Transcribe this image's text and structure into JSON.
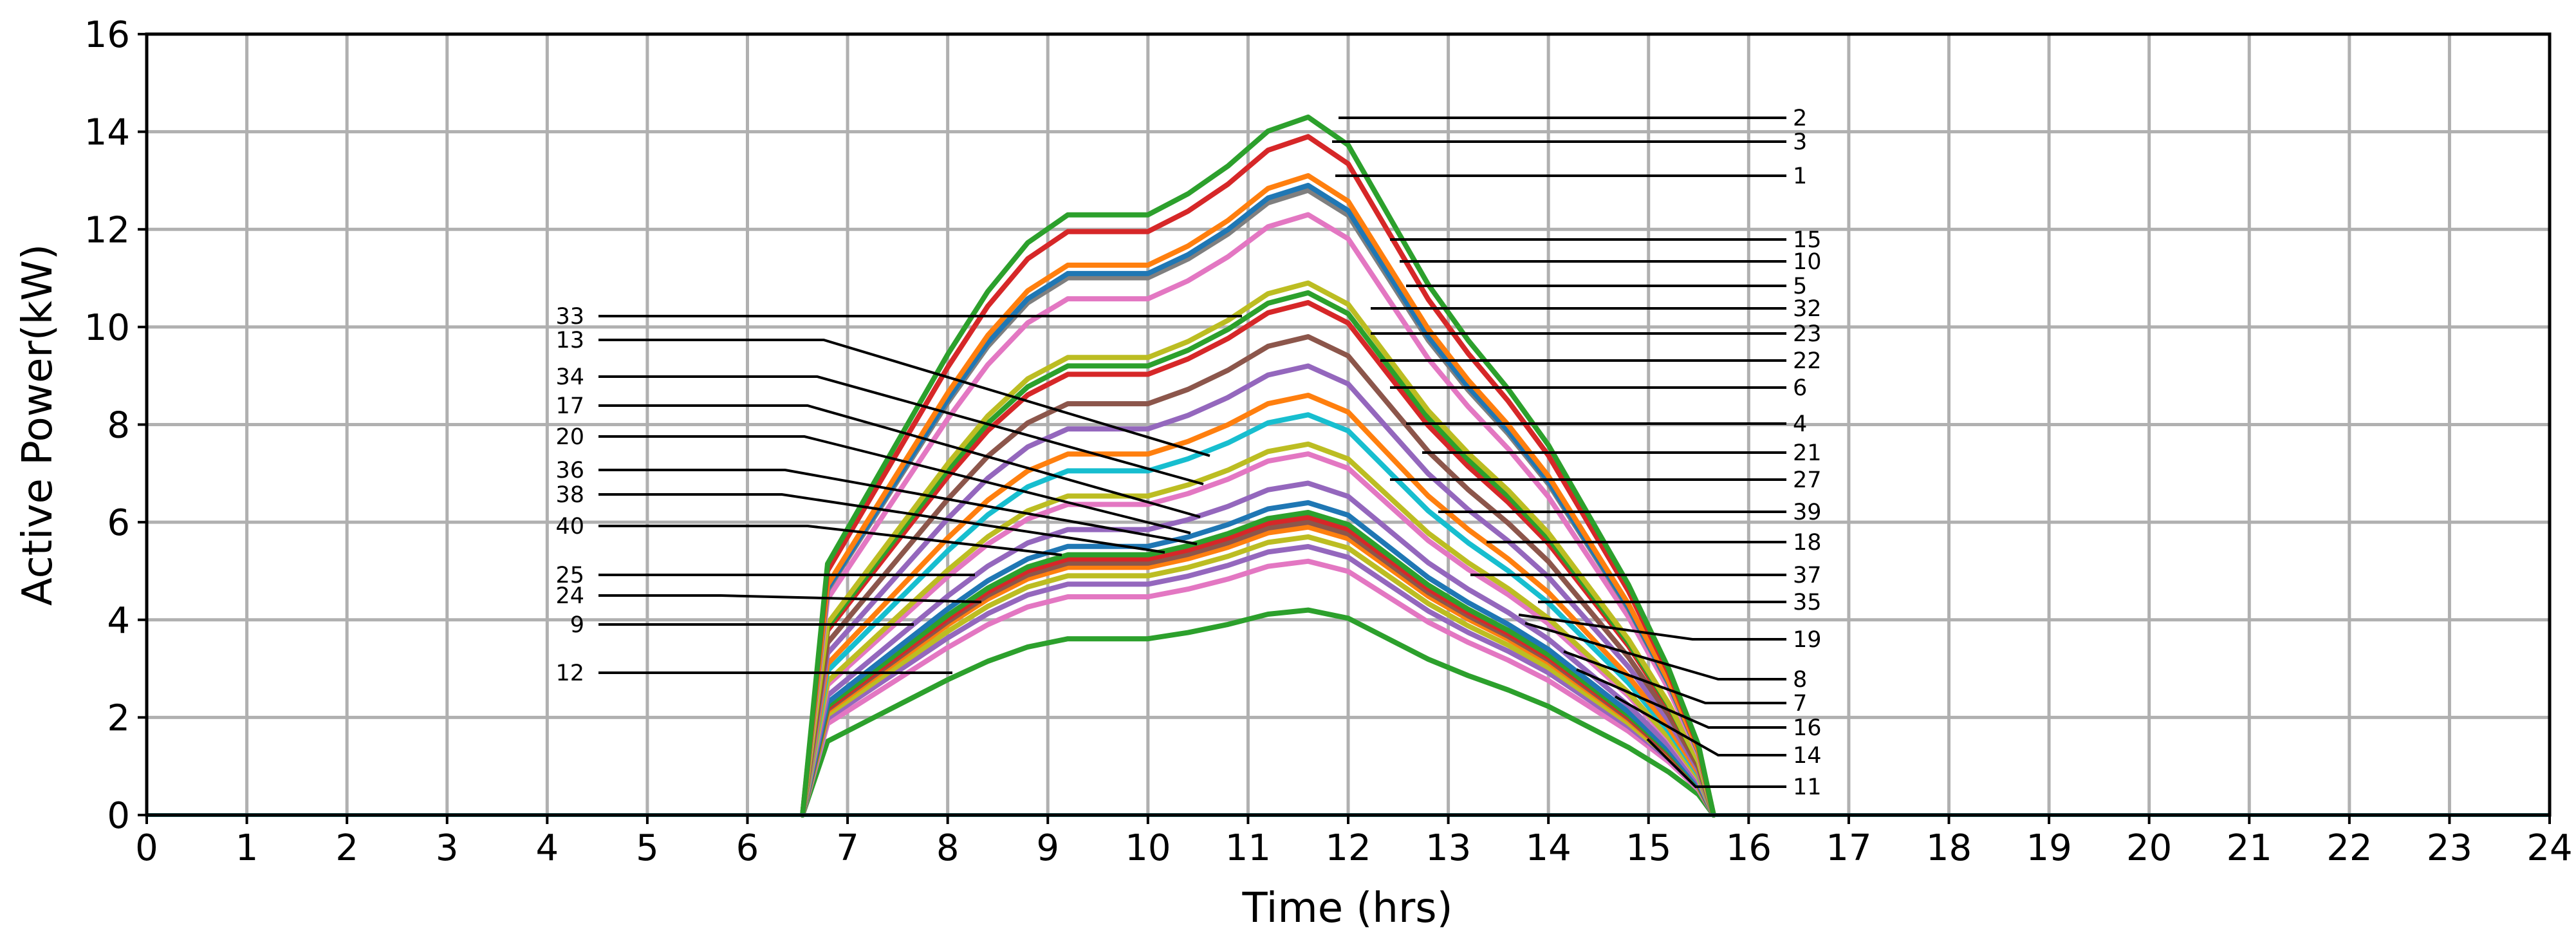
{
  "chart_data": {
    "type": "line",
    "title": "",
    "xlabel": "Time (hrs)",
    "ylabel": "Active Power(kW)",
    "xlim": [
      0,
      24
    ],
    "ylim": [
      0,
      16
    ],
    "x_ticks": [
      "0",
      "1",
      "2",
      "3",
      "4",
      "5",
      "6",
      "7",
      "8",
      "9",
      "10",
      "11",
      "12",
      "13",
      "14",
      "15",
      "16",
      "17",
      "18",
      "19",
      "20",
      "21",
      "22",
      "23",
      "24"
    ],
    "y_ticks": [
      "0",
      "2",
      "4",
      "6",
      "8",
      "10",
      "12",
      "14",
      "16"
    ],
    "grid": true,
    "legend": "none (curves labelled by numbered leader lines)",
    "shape_x": [
      6.55,
      6.8,
      7.2,
      7.6,
      8.0,
      8.4,
      8.8,
      9.2,
      9.6,
      10.0,
      10.4,
      10.8,
      11.2,
      11.6,
      12.0,
      12.4,
      12.8,
      13.2,
      13.6,
      14.0,
      14.4,
      14.8,
      15.2,
      15.5,
      15.65
    ],
    "shape_y": [
      0.0,
      0.36,
      0.46,
      0.56,
      0.66,
      0.75,
      0.82,
      0.86,
      0.86,
      0.86,
      0.89,
      0.93,
      0.98,
      1.0,
      0.96,
      0.86,
      0.76,
      0.68,
      0.61,
      0.53,
      0.43,
      0.33,
      0.21,
      0.1,
      0.0
    ],
    "series": [
      {
        "name": "2",
        "color": "#2ca02c",
        "peak": 14.3
      },
      {
        "name": "3",
        "color": "#d62728",
        "peak": 13.9
      },
      {
        "name": "1",
        "color": "#ff7f0e",
        "peak": 13.1
      },
      {
        "name": "15",
        "color": "#1f77b4",
        "peak": 12.9
      },
      {
        "name": "10",
        "color": "#7f7f7f",
        "peak": 12.8
      },
      {
        "name": "5",
        "color": "#e377c2",
        "peak": 12.3
      },
      {
        "name": "32",
        "color": "#bcbd22",
        "peak": 10.9
      },
      {
        "name": "23",
        "color": "#2ca02c",
        "peak": 10.7
      },
      {
        "name": "22",
        "color": "#d62728",
        "peak": 10.5
      },
      {
        "name": "6",
        "color": "#8c564b",
        "peak": 9.8
      },
      {
        "name": "4",
        "color": "#9467bd",
        "peak": 9.2
      },
      {
        "name": "21",
        "color": "#ff7f0e",
        "peak": 8.6
      },
      {
        "name": "27",
        "color": "#17becf",
        "peak": 8.2
      },
      {
        "name": "39",
        "color": "#bcbd22",
        "peak": 7.6
      },
      {
        "name": "18",
        "color": "#e377c2",
        "peak": 7.4
      },
      {
        "name": "37",
        "color": "#9467bd",
        "peak": 6.8
      },
      {
        "name": "35",
        "color": "#1f77b4",
        "peak": 6.4
      },
      {
        "name": "19",
        "color": "#2ca02c",
        "peak": 6.2
      },
      {
        "name": "8",
        "color": "#d62728",
        "peak": 6.1
      },
      {
        "name": "7",
        "color": "#8c564b",
        "peak": 6.0
      },
      {
        "name": "16",
        "color": "#ff7f0e",
        "peak": 5.9
      },
      {
        "name": "14",
        "color": "#bcbd22",
        "peak": 5.7
      },
      {
        "name": "40",
        "color": "#9467bd",
        "peak": 5.5
      },
      {
        "name": "24",
        "color": "#e377c2",
        "peak": 5.2
      },
      {
        "name": "11",
        "color": "#2ca02c",
        "peak": 4.2
      }
    ],
    "curve_labels": [
      "2",
      "3",
      "1",
      "15",
      "10",
      "5",
      "32",
      "23",
      "22",
      "6",
      "4",
      "21",
      "27",
      "39",
      "18",
      "37",
      "35",
      "19",
      "8",
      "7",
      "16",
      "14",
      "11",
      "33",
      "13",
      "34",
      "17",
      "20",
      "36",
      "38",
      "40",
      "25",
      "24",
      "9",
      "12"
    ]
  }
}
